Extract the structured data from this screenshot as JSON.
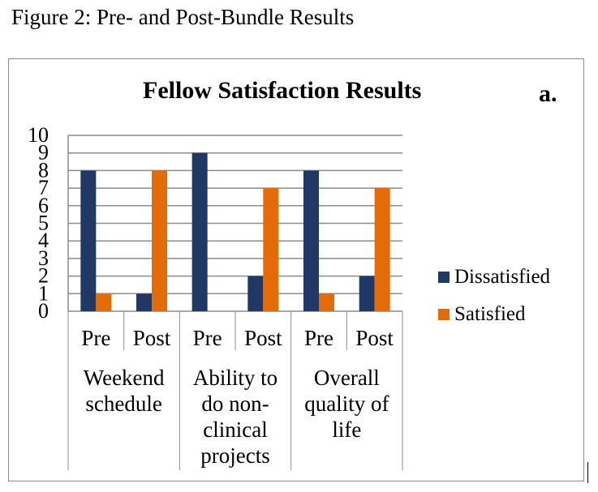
{
  "figure_caption": "Figure 2: Pre- and Post-Bundle Results",
  "panel_label": "a.",
  "chart_data": {
    "type": "bar",
    "title": "Fellow Satisfaction Results",
    "xlabel": "",
    "ylabel": "",
    "ylim": [
      0,
      10
    ],
    "yticks": [
      0,
      1,
      2,
      3,
      4,
      5,
      6,
      7,
      8,
      9,
      10
    ],
    "groups": [
      {
        "label_lines": [
          "Weekend",
          "schedule"
        ],
        "categories": [
          "Pre",
          "Post"
        ]
      },
      {
        "label_lines": [
          "Ability to",
          "do non-",
          "clinical",
          "projects"
        ],
        "categories": [
          "Pre",
          "Post"
        ]
      },
      {
        "label_lines": [
          "Overall",
          "quality of",
          "life"
        ],
        "categories": [
          "Pre",
          "Post"
        ]
      }
    ],
    "categories": [
      "Pre",
      "Post",
      "Pre",
      "Post",
      "Pre",
      "Post"
    ],
    "series": [
      {
        "name": "Dissatisfied",
        "color": "#1f3864",
        "values": [
          8,
          1,
          9,
          2,
          8,
          2
        ]
      },
      {
        "name": "Satisfied",
        "color": "#e36c09",
        "values": [
          1,
          8,
          0,
          7,
          1,
          7
        ]
      }
    ],
    "legend_position": "right",
    "grid": true
  }
}
